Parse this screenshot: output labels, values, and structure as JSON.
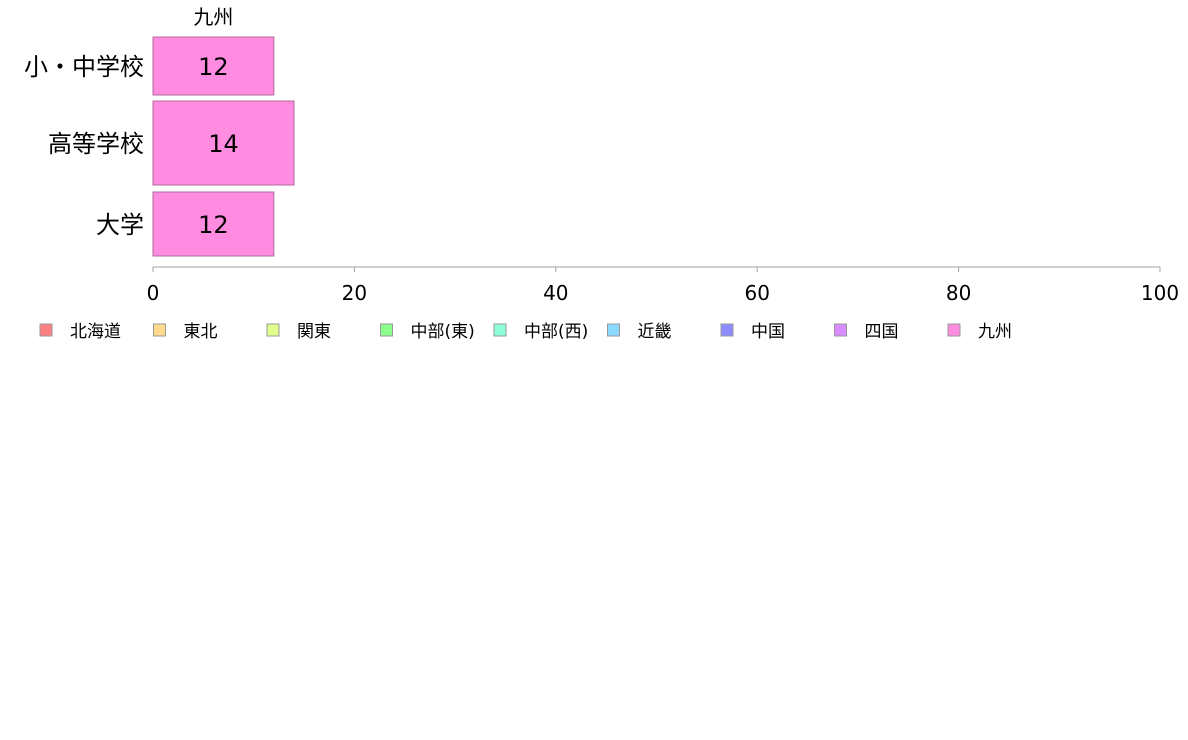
{
  "chart_data": {
    "type": "bar",
    "orientation": "horizontal",
    "stacked": true,
    "categories": [
      "小・中学校",
      "高等学校",
      "大学"
    ],
    "series": [
      {
        "name": "北海道",
        "color": "#ff8080",
        "values": [
          0,
          0,
          0
        ]
      },
      {
        "name": "東北",
        "color": "#ffd98c",
        "values": [
          0,
          0,
          0
        ]
      },
      {
        "name": "関東",
        "color": "#e0ff8c",
        "values": [
          0,
          0,
          0
        ]
      },
      {
        "name": "中部(東)",
        "color": "#8cff8c",
        "values": [
          0,
          0,
          0
        ]
      },
      {
        "name": "中部(西)",
        "color": "#8cffd9",
        "values": [
          0,
          0,
          0
        ]
      },
      {
        "name": "近畿",
        "color": "#8cd9ff",
        "values": [
          0,
          0,
          0
        ]
      },
      {
        "name": "中国",
        "color": "#8c8cff",
        "values": [
          0,
          0,
          0
        ]
      },
      {
        "name": "四国",
        "color": "#d98cff",
        "values": [
          0,
          0,
          0
        ]
      },
      {
        "name": "九州",
        "color": "#ff8ce0",
        "values": [
          12,
          14,
          12
        ]
      }
    ],
    "data_labels": [
      "12",
      "14",
      "12"
    ],
    "segment_label": "九州",
    "xlim": [
      0,
      100
    ],
    "xticks": [
      "0",
      "20",
      "40",
      "60",
      "80",
      "100"
    ],
    "grid": false,
    "legend_position": "bottom",
    "title": "",
    "xlabel": "",
    "ylabel": ""
  }
}
